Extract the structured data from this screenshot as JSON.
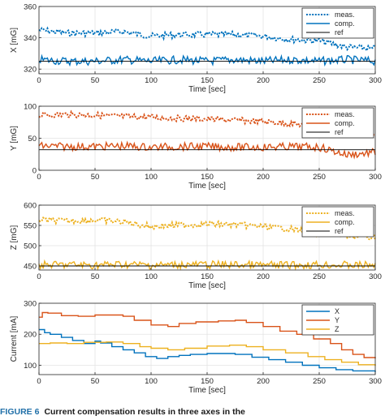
{
  "caption": {
    "label": "FIGURE 6",
    "text": "Current compensation results in three axes in the"
  },
  "chart_data": [
    {
      "type": "line",
      "xlabel": "Time [sec]",
      "ylabel": "X [mG]",
      "xlim": [
        0,
        300
      ],
      "ylim": [
        317,
        360
      ],
      "xticks": [
        0,
        50,
        100,
        150,
        200,
        250,
        300
      ],
      "yticks": [
        320,
        340,
        360
      ],
      "grid": true,
      "legend": "top-right",
      "x": [
        0,
        25,
        50,
        75,
        100,
        125,
        150,
        175,
        200,
        225,
        250,
        275,
        300
      ],
      "series": [
        {
          "name": "meas.",
          "style": "dotted",
          "color": "#0072bd",
          "values": [
            345,
            343,
            343,
            344,
            341,
            342,
            342,
            342,
            341,
            339,
            338,
            334,
            333
          ]
        },
        {
          "name": "comp.",
          "style": "solid",
          "color": "#0072bd",
          "values": [
            326,
            325,
            325,
            326,
            325,
            326,
            325,
            326,
            325,
            326,
            325,
            326,
            325
          ]
        },
        {
          "name": "ref",
          "style": "solid",
          "color": "#000000",
          "values": [
            325,
            325,
            325,
            325,
            325,
            325,
            325,
            325,
            325,
            325,
            325,
            325,
            325
          ]
        }
      ]
    },
    {
      "type": "line",
      "xlabel": "Time [sec]",
      "ylabel": "Y [mG]",
      "xlim": [
        0,
        300
      ],
      "ylim": [
        0,
        100
      ],
      "xticks": [
        0,
        50,
        100,
        150,
        200,
        250,
        300
      ],
      "yticks": [
        0,
        50,
        100
      ],
      "grid": true,
      "legend": "top-right",
      "x": [
        0,
        25,
        50,
        75,
        100,
        125,
        150,
        175,
        200,
        225,
        250,
        275,
        300
      ],
      "series": [
        {
          "name": "meas.",
          "style": "dotted",
          "color": "#d95319",
          "values": [
            86,
            87,
            86,
            84,
            83,
            81,
            80,
            78,
            76,
            73,
            69,
            60,
            56
          ]
        },
        {
          "name": "comp.",
          "style": "solid",
          "color": "#d95319",
          "values": [
            38,
            37,
            37,
            38,
            36,
            37,
            37,
            36,
            36,
            37,
            36,
            24,
            28
          ]
        },
        {
          "name": "ref",
          "style": "solid",
          "color": "#000000",
          "values": [
            32,
            32,
            32,
            32,
            32,
            32,
            32,
            32,
            32,
            32,
            32,
            32,
            32
          ]
        }
      ]
    },
    {
      "type": "line",
      "xlabel": "Time [sec]",
      "ylabel": "Z [mG]",
      "xlim": [
        0,
        300
      ],
      "ylim": [
        440,
        600
      ],
      "xticks": [
        0,
        50,
        100,
        150,
        200,
        250,
        300
      ],
      "yticks": [
        450,
        500,
        550,
        600
      ],
      "grid": true,
      "legend": "top-right",
      "x": [
        0,
        25,
        50,
        75,
        100,
        125,
        150,
        175,
        200,
        225,
        250,
        275,
        300
      ],
      "series": [
        {
          "name": "meas.",
          "style": "dotted",
          "color": "#edb120",
          "values": [
            563,
            561,
            563,
            559,
            547,
            551,
            553,
            552,
            547,
            541,
            531,
            524,
            520
          ]
        },
        {
          "name": "comp.",
          "style": "solid",
          "color": "#edb120",
          "values": [
            452,
            453,
            452,
            454,
            452,
            453,
            453,
            453,
            452,
            452,
            453,
            452,
            452
          ]
        },
        {
          "name": "ref",
          "style": "solid",
          "color": "#000000",
          "values": [
            450,
            450,
            450,
            450,
            450,
            450,
            450,
            450,
            450,
            450,
            450,
            450,
            450
          ]
        }
      ]
    },
    {
      "type": "line",
      "step": true,
      "xlabel": "Time [sec]",
      "ylabel": "Current [mA]",
      "xlim": [
        0,
        300
      ],
      "ylim": [
        70,
        300
      ],
      "xticks": [
        0,
        50,
        100,
        150,
        200,
        250,
        300
      ],
      "yticks": [
        100,
        200,
        300
      ],
      "grid": true,
      "legend": "top-right",
      "series": [
        {
          "name": "X",
          "style": "solid",
          "color": "#0072bd",
          "x": [
            0,
            5,
            10,
            20,
            30,
            40,
            50,
            55,
            65,
            75,
            85,
            95,
            105,
            115,
            125,
            135,
            150,
            175,
            190,
            205,
            220,
            235,
            250,
            265,
            280,
            300
          ],
          "values": [
            215,
            205,
            200,
            190,
            180,
            170,
            178,
            172,
            160,
            150,
            140,
            128,
            122,
            128,
            132,
            135,
            138,
            135,
            126,
            118,
            110,
            100,
            92,
            86,
            82,
            78
          ]
        },
        {
          "name": "Y",
          "style": "solid",
          "color": "#d95319",
          "x": [
            0,
            3,
            8,
            20,
            35,
            50,
            75,
            85,
            100,
            115,
            125,
            140,
            160,
            175,
            185,
            200,
            215,
            230,
            245,
            260,
            270,
            280,
            290,
            300
          ],
          "values": [
            255,
            270,
            268,
            260,
            258,
            262,
            258,
            245,
            230,
            225,
            235,
            240,
            243,
            245,
            238,
            225,
            210,
            200,
            185,
            170,
            150,
            135,
            125,
            122
          ]
        },
        {
          "name": "Z",
          "style": "solid",
          "color": "#edb120",
          "x": [
            0,
            10,
            25,
            40,
            60,
            75,
            90,
            100,
            115,
            130,
            150,
            170,
            185,
            200,
            220,
            240,
            255,
            270,
            285,
            300
          ],
          "values": [
            170,
            172,
            170,
            174,
            175,
            170,
            160,
            155,
            150,
            155,
            162,
            165,
            160,
            150,
            140,
            128,
            118,
            110,
            102,
            98
          ]
        }
      ]
    }
  ]
}
